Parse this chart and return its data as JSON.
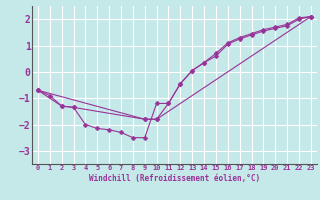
{
  "xlabel": "Windchill (Refroidissement éolien,°C)",
  "background_color": "#c5e8e8",
  "grid_color": "#ffffff",
  "line_color": "#993399",
  "xlim": [
    -0.5,
    23.5
  ],
  "ylim": [
    -3.5,
    2.5
  ],
  "xticks": [
    0,
    1,
    2,
    3,
    4,
    5,
    6,
    7,
    8,
    9,
    10,
    11,
    12,
    13,
    14,
    15,
    16,
    17,
    18,
    19,
    20,
    21,
    22,
    23
  ],
  "yticks": [
    -3,
    -2,
    -1,
    0,
    1,
    2
  ],
  "series": [
    {
      "x": [
        0,
        1,
        2,
        3,
        4,
        5,
        6,
        7,
        8,
        9,
        10,
        11,
        12,
        13,
        14,
        15,
        16,
        17,
        18,
        19,
        20,
        21,
        22,
        23
      ],
      "y": [
        -0.7,
        -0.9,
        -1.3,
        -1.35,
        -2.0,
        -2.15,
        -2.2,
        -2.3,
        -2.5,
        -2.5,
        -1.2,
        -1.2,
        -0.45,
        0.05,
        0.35,
        0.6,
        1.05,
        1.25,
        1.4,
        1.55,
        1.65,
        1.75,
        2.0,
        2.1
      ]
    },
    {
      "x": [
        0,
        2,
        3,
        9,
        10,
        11,
        12,
        13,
        14,
        15,
        16,
        17,
        18,
        19,
        20,
        21,
        22,
        23
      ],
      "y": [
        -0.7,
        -1.3,
        -1.35,
        -1.8,
        -1.8,
        -1.2,
        -0.45,
        0.05,
        0.35,
        0.7,
        1.1,
        1.3,
        1.45,
        1.6,
        1.7,
        1.8,
        2.05,
        2.1
      ]
    },
    {
      "x": [
        0,
        9,
        10,
        23
      ],
      "y": [
        -0.7,
        -1.8,
        -1.8,
        2.1
      ]
    }
  ]
}
